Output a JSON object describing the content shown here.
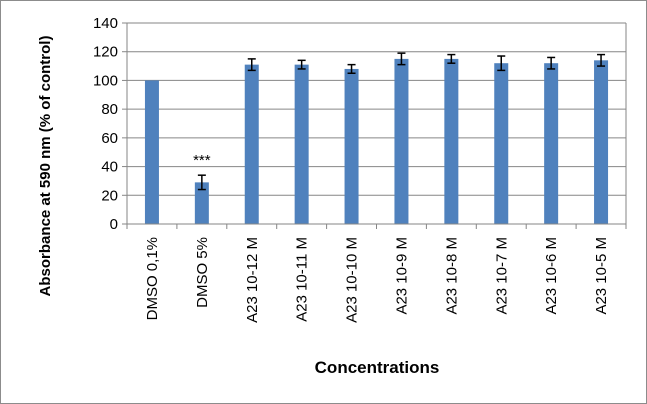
{
  "chart_data": {
    "type": "bar",
    "categories": [
      "DMSO 0,1%",
      "DMSO 5%",
      "A23 10-12 M",
      "A23 10-11 M",
      "A23 10-10 M",
      "A23 10-9 M",
      "A23 10-8 M",
      "A23 10-7 M",
      "A23 10-6 M",
      "A23 10-5 M"
    ],
    "values": [
      100,
      29,
      111,
      111,
      108,
      115,
      115,
      112,
      112,
      114
    ],
    "errors": [
      0,
      5,
      4,
      3,
      3,
      4,
      3,
      5,
      4,
      4
    ],
    "xlabel": "Concentrations",
    "ylabel": "Absorbance at 590 nm (% of control)",
    "ylim": [
      0,
      140
    ],
    "yticks": [
      0,
      20,
      40,
      60,
      80,
      100,
      120,
      140
    ],
    "grid": true,
    "annotations": [
      {
        "category": "DMSO 5%",
        "text": "***"
      }
    ],
    "colors": {
      "bar": "#4f81bd",
      "grid": "#868686",
      "error_bar": "#000000"
    }
  }
}
